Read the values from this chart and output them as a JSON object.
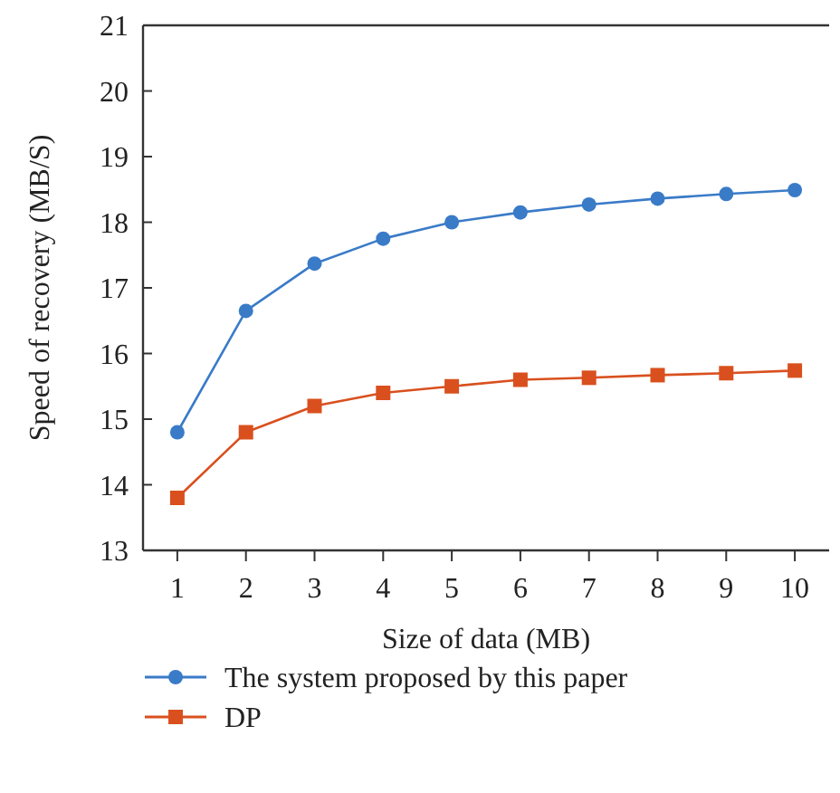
{
  "chart_data": {
    "type": "line",
    "xlabel": "Size of data (MB)",
    "ylabel": "Speed of recovery (MB/S)",
    "x": [
      1,
      2,
      3,
      4,
      5,
      6,
      7,
      8,
      9,
      10
    ],
    "xlim": [
      0.5,
      10.5
    ],
    "xticks": [
      1,
      2,
      3,
      4,
      5,
      6,
      7,
      8,
      9,
      10
    ],
    "ylim": [
      13,
      21
    ],
    "yticks": [
      13,
      14,
      15,
      16,
      17,
      18,
      19,
      20,
      21
    ],
    "series": [
      {
        "name": "The system proposed by this paper",
        "color": "#3a7bc8",
        "marker": "circle",
        "values": [
          14.8,
          16.65,
          17.37,
          17.75,
          18.0,
          18.15,
          18.27,
          18.36,
          18.43,
          18.49
        ]
      },
      {
        "name": "DP",
        "color": "#d9501e",
        "marker": "square",
        "values": [
          13.8,
          14.8,
          15.2,
          15.4,
          15.5,
          15.6,
          15.63,
          15.67,
          15.7,
          15.74
        ]
      }
    ],
    "legend": "bottom",
    "grid": false
  }
}
